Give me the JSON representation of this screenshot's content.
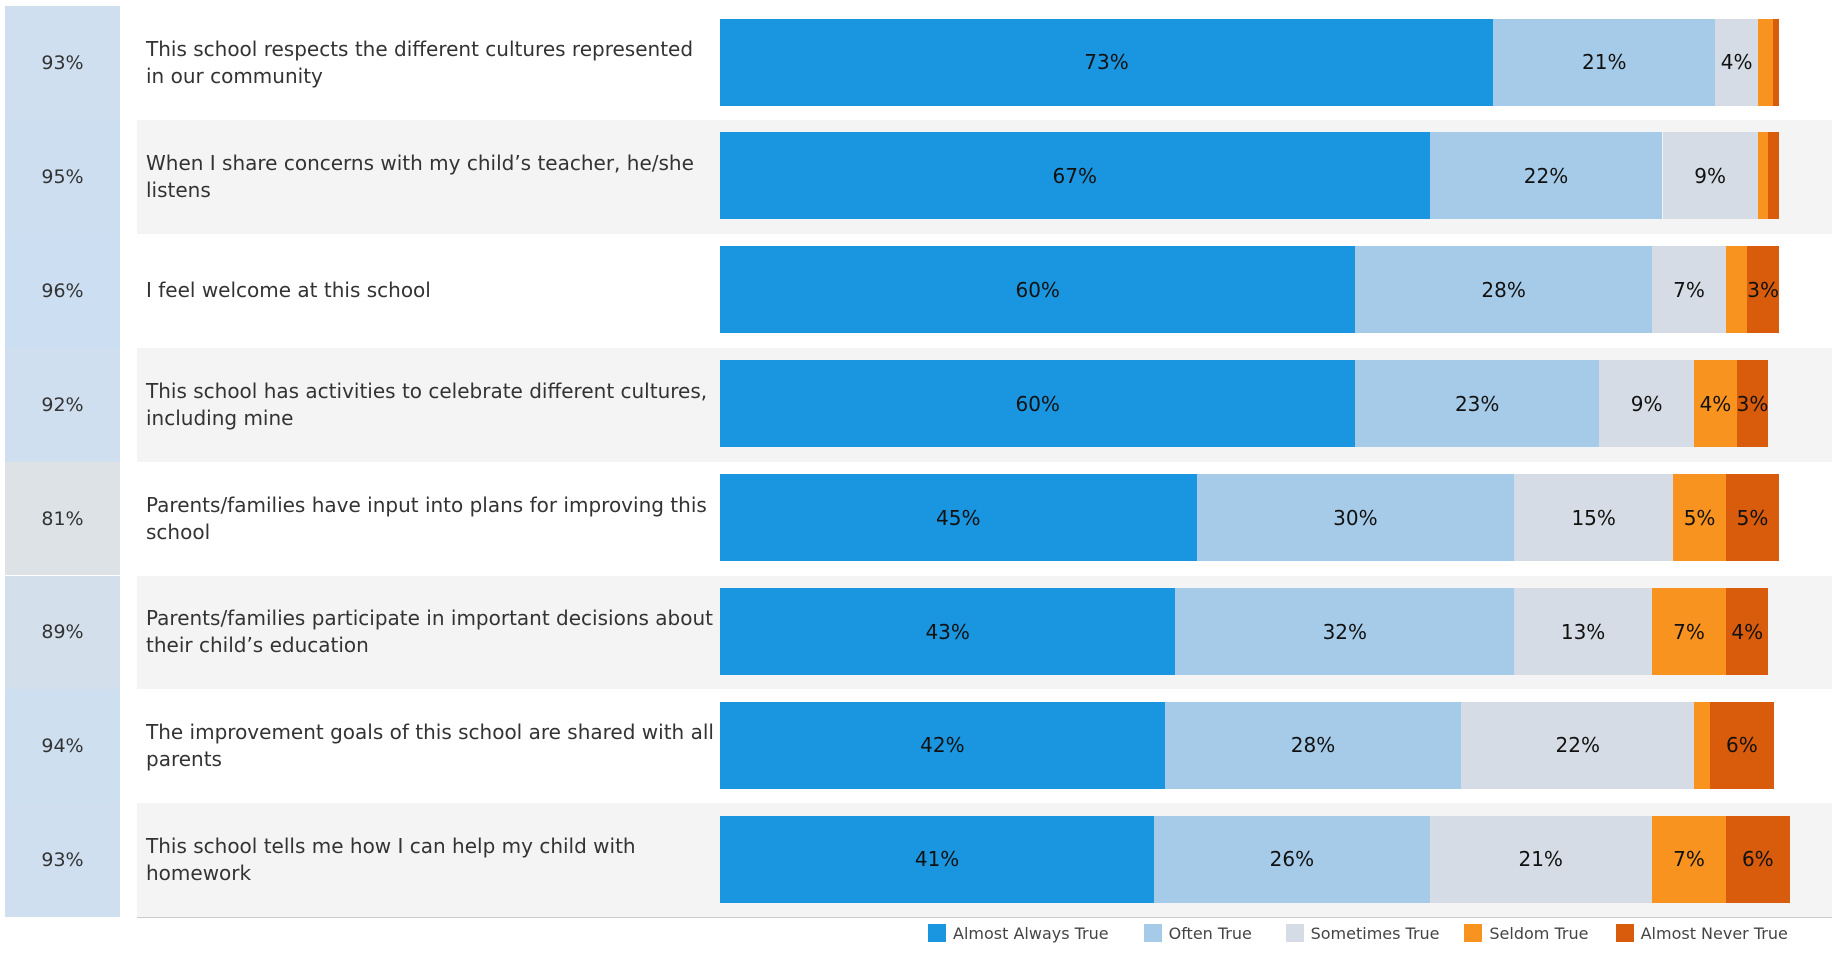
{
  "chart_data": {
    "type": "stacked-bar-horizontal",
    "categories": [
      "This school respects the different cultures represented in our community",
      "When I share concerns with my child’s teacher, he/she listens",
      "I feel welcome at this school",
      "This school has activities to celebrate different cultures, including mine",
      "Parents/families have input into plans for improving this school",
      "Parents/families participate in important decisions about their child’s education",
      "The improvement goals of this school are shared with all parents",
      "This school tells me how I can help my child with homework"
    ],
    "favorable": {
      "values": [
        93,
        95,
        96,
        92,
        81,
        89,
        94,
        93
      ],
      "value_labels": [
        "93%",
        "95%",
        "96%",
        "92%",
        "81%",
        "89%",
        "94%",
        "93%"
      ]
    },
    "xlim": [
      0,
      100
    ],
    "series": [
      {
        "name": "Almost Always True",
        "color": "#1a96e0",
        "values": [
          73,
          67,
          60,
          60,
          45,
          43,
          42,
          41
        ],
        "value_labels": [
          "73%",
          "67%",
          "60%",
          "60%",
          "45%",
          "43%",
          "42%",
          "41%"
        ]
      },
      {
        "name": "Often True",
        "color": "#a6cbe8",
        "values": [
          21,
          22,
          28,
          23,
          30,
          32,
          28,
          26
        ],
        "value_labels": [
          "21%",
          "22%",
          "28%",
          "23%",
          "30%",
          "32%",
          "28%",
          "26%"
        ]
      },
      {
        "name": "Sometimes True",
        "color": "#d5dce5",
        "values": [
          4,
          9,
          7,
          9,
          15,
          13,
          22,
          21
        ],
        "value_labels": [
          "4%",
          "9%",
          "7%",
          "9%",
          "15%",
          "13%",
          "22%",
          "21%"
        ]
      },
      {
        "name": "Seldom True",
        "color": "#f7931e",
        "values": [
          1.4,
          1,
          2,
          4,
          5,
          7,
          1.5,
          7
        ],
        "value_labels": [
          null,
          null,
          null,
          "4%",
          "5%",
          "7%",
          null,
          "7%"
        ]
      },
      {
        "name": "Almost Never True",
        "color": "#d95c0c",
        "values": [
          0.6,
          1,
          3,
          3,
          5,
          4,
          6,
          6
        ],
        "value_labels": [
          null,
          null,
          "3%",
          "3%",
          "5%",
          "4%",
          "6%",
          "6%"
        ]
      }
    ],
    "legend": "bottom-right"
  }
}
